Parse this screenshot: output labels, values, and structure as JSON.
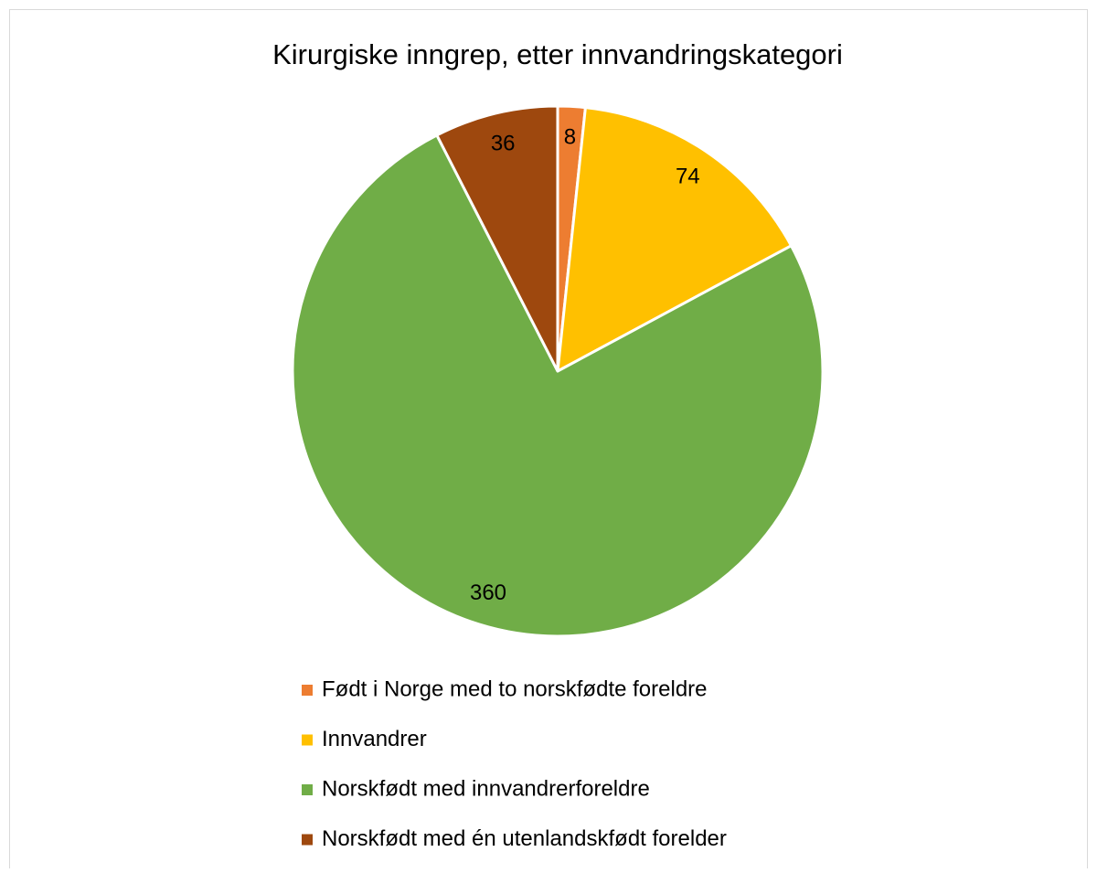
{
  "chart_data": {
    "type": "pie",
    "title": "Kirurgiske inngrep, etter innvandringskategori",
    "categories": [
      "Født i Norge med to norskfødte foreldre",
      "Innvandrer",
      "Norskfødt med innvandrerforeldre",
      "Norskfødt med én utenlandskfødt forelder"
    ],
    "values": [
      8,
      74,
      360,
      36
    ],
    "colors": [
      "#ED7D31",
      "#FFC000",
      "#70AD47",
      "#9E480E"
    ],
    "legend": "bottom"
  }
}
